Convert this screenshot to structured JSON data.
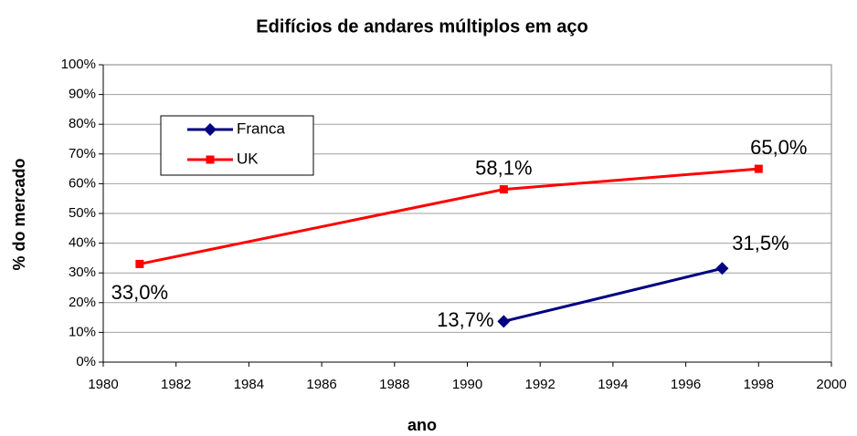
{
  "chart_data": {
    "type": "line",
    "title": "Edifícios de andares múltiplos em aço",
    "x_label": "ano",
    "y_label": "% do mercado",
    "xlim": [
      1980,
      2000
    ],
    "xticks": [
      1980,
      1982,
      1984,
      1986,
      1988,
      1990,
      1992,
      1994,
      1996,
      1998,
      2000
    ],
    "ylim": [
      0,
      100
    ],
    "yticks": [
      {
        "value": 0,
        "label": "0%"
      },
      {
        "value": 10,
        "label": "10%"
      },
      {
        "value": 20,
        "label": "20%"
      },
      {
        "value": 30,
        "label": "30%"
      },
      {
        "value": 40,
        "label": "40%"
      },
      {
        "value": 50,
        "label": "50%"
      },
      {
        "value": 60,
        "label": "60%"
      },
      {
        "value": 70,
        "label": "70%"
      },
      {
        "value": 80,
        "label": "80%"
      },
      {
        "value": 90,
        "label": "90%"
      },
      {
        "value": 100,
        "label": "100%"
      }
    ],
    "grid": true,
    "legend": "upper left",
    "series": [
      {
        "name": "Franca",
        "color": "#000080",
        "marker": "diamond",
        "x": [
          1991,
          1997
        ],
        "values": [
          13.7,
          31.5
        ],
        "value_labels": [
          "13,7%",
          "31,5%"
        ]
      },
      {
        "name": "UK",
        "color": "#ff0000",
        "marker": "square",
        "x": [
          1981,
          1991,
          1998
        ],
        "values": [
          33.0,
          58.1,
          65.0
        ],
        "value_labels": [
          "33,0%",
          "58,1%",
          "65,0%"
        ]
      }
    ]
  }
}
